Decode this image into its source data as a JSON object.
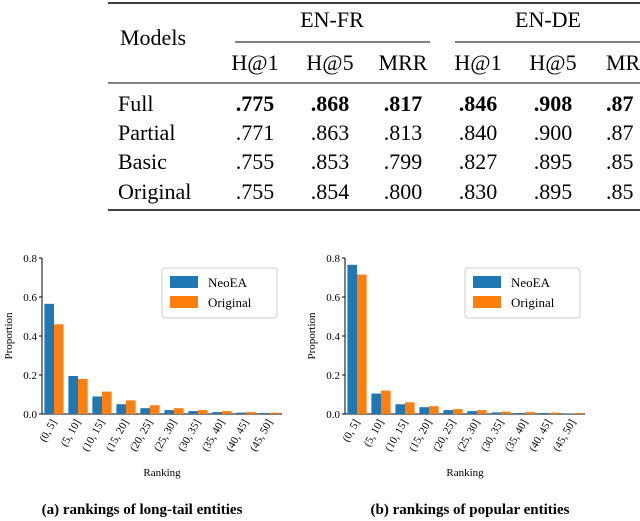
{
  "table": {
    "corner": "Models",
    "groups": [
      "EN-FR",
      "EN-DE"
    ],
    "columns": [
      "H@1",
      "H@5",
      "MRR",
      "H@1",
      "H@5",
      "MR"
    ],
    "rows": [
      {
        "cells": [
          "Full",
          ".775",
          ".868",
          ".817",
          ".846",
          ".908",
          ".87"
        ],
        "bold": true
      },
      {
        "cells": [
          "Partial",
          ".771",
          ".863",
          ".813",
          ".840",
          ".900",
          ".87"
        ],
        "bold": false
      },
      {
        "cells": [
          "Basic",
          ".755",
          ".853",
          ".799",
          ".827",
          ".895",
          ".85"
        ],
        "bold": false
      },
      {
        "cells": [
          "Original",
          ".755",
          ".854",
          ".800",
          ".830",
          ".895",
          ".85"
        ],
        "bold": false
      }
    ]
  },
  "chart_data": [
    {
      "type": "bar",
      "caption": "(a) rankings of long-tail entities",
      "xlabel": "Ranking",
      "ylabel": "Proportion",
      "categories": [
        "(0, 5]",
        "(5, 10]",
        "(10, 15]",
        "(15, 20]",
        "(20, 25]",
        "(25, 30]",
        "(30, 35]",
        "(35, 40]",
        "(40, 45]",
        "(45, 50]"
      ],
      "series": [
        {
          "name": "NeoEA",
          "color": "#1f77b4",
          "values": [
            0.565,
            0.195,
            0.09,
            0.05,
            0.03,
            0.02,
            0.015,
            0.01,
            0.007,
            0.005
          ]
        },
        {
          "name": "Original",
          "color": "#ff7f0e",
          "values": [
            0.46,
            0.18,
            0.115,
            0.07,
            0.045,
            0.03,
            0.02,
            0.015,
            0.01,
            0.007
          ]
        }
      ],
      "ylim": [
        0,
        0.8
      ],
      "yticks": [
        {
          "value": 0,
          "label": "0.0"
        },
        0.2,
        0.4,
        0.6,
        0.8
      ],
      "legend": "upper right"
    },
    {
      "type": "bar",
      "caption": "(b) rankings of popular entities",
      "xlabel": "Ranking",
      "ylabel": "Proportion",
      "categories": [
        "(0, 5]",
        "(5, 10]",
        "(10, 15]",
        "(15, 20]",
        "(20, 25]",
        "(25, 30]",
        "(30, 35]",
        "(35, 40]",
        "(40, 45]",
        "(45, 50]"
      ],
      "series": [
        {
          "name": "NeoEA",
          "color": "#1f77b4",
          "values": [
            0.765,
            0.105,
            0.05,
            0.035,
            0.02,
            0.015,
            0.008,
            0.005,
            0.005,
            0.003
          ]
        },
        {
          "name": "Original",
          "color": "#ff7f0e",
          "values": [
            0.715,
            0.12,
            0.06,
            0.04,
            0.025,
            0.02,
            0.012,
            0.01,
            0.007,
            0.005
          ]
        }
      ],
      "ylim": [
        0,
        0.8
      ],
      "yticks": [
        {
          "value": 0,
          "label": "0.0"
        },
        0.2,
        0.4,
        0.6,
        0.8
      ],
      "legend": "upper right"
    }
  ]
}
